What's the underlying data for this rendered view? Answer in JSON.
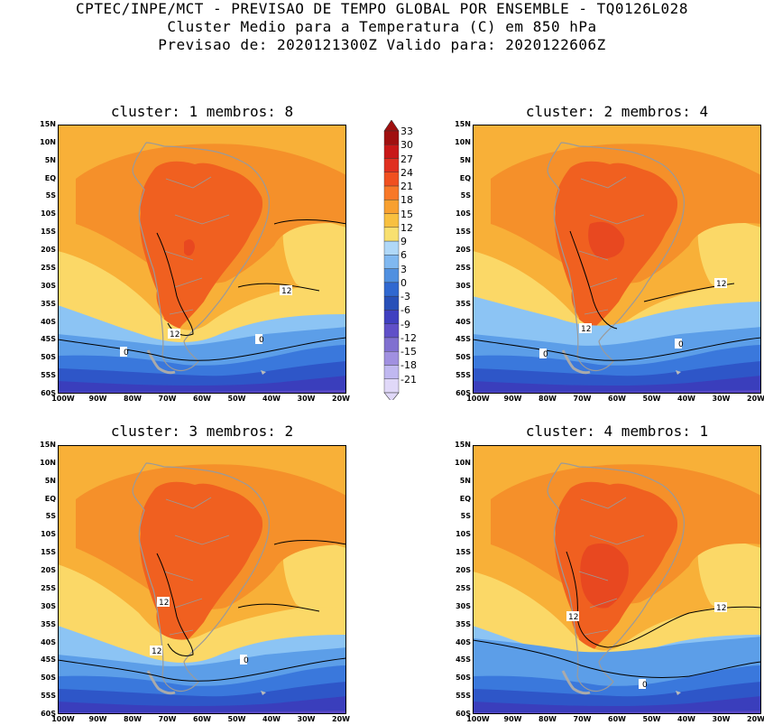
{
  "header": {
    "line1": "CPTEC/INPE/MCT - PREVISAO DE TEMPO GLOBAL POR ENSEMBLE - TQ0126L028",
    "line2": "Cluster Medio para a Temperatura (C) em 850 hPa",
    "line3": "Previsao de: 2020121300Z   Valido para: 2020122606Z"
  },
  "panels": [
    {
      "title": "cluster: 1  membros: 8"
    },
    {
      "title": "cluster: 2  membros: 4"
    },
    {
      "title": "cluster: 3  membros: 2"
    },
    {
      "title": "cluster: 4  membros: 1"
    }
  ],
  "lat_ticks": [
    "15N",
    "10N",
    "5N",
    "EQ",
    "5S",
    "10S",
    "15S",
    "20S",
    "25S",
    "30S",
    "35S",
    "40S",
    "45S",
    "50S",
    "55S",
    "60S"
  ],
  "lon_ticks": [
    "100W",
    "90W",
    "80W",
    "70W",
    "60W",
    "50W",
    "40W",
    "30W",
    "20W"
  ],
  "contour_labels": {
    "twelve": "12",
    "zero": "0"
  },
  "colorbar": {
    "levels": [
      "33",
      "30",
      "27",
      "24",
      "21",
      "18",
      "15",
      "12",
      "9",
      "6",
      "3",
      "0",
      "-3",
      "-6",
      "-9",
      "-12",
      "-15",
      "-18",
      "-21"
    ],
    "colors": [
      "#a01010",
      "#c81818",
      "#e03020",
      "#f05020",
      "#f87828",
      "#f8a030",
      "#f8c040",
      "#f8e070",
      "#b0d8f8",
      "#80b8f0",
      "#5090e0",
      "#3068d0",
      "#2850b8",
      "#4040c0",
      "#6050c8",
      "#8070d0",
      "#a090e0",
      "#c0b8f0",
      "#e0d8f8"
    ]
  }
}
